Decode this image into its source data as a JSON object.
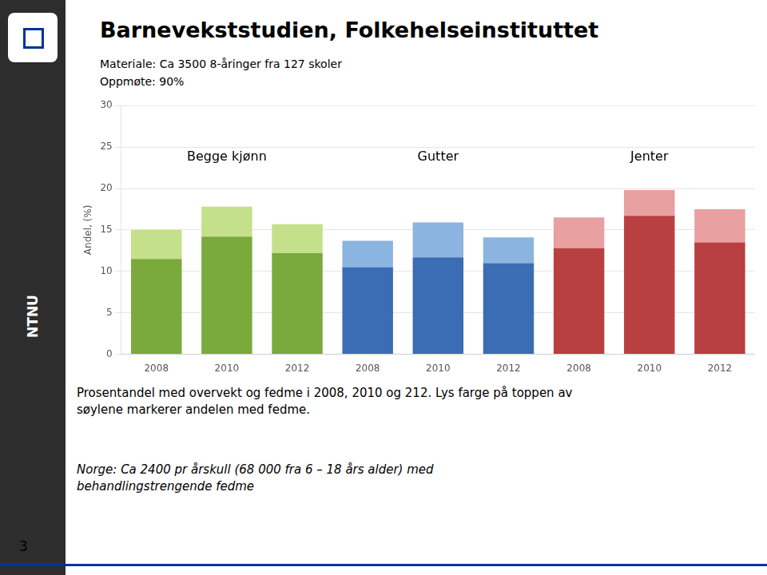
{
  "chart_data": {
    "type": "bar",
    "title": "Barnevekststudien, Folkehelseinstituttet",
    "subtitle": [
      "Materiale: Ca 3500 8-åringer fra 127 skoler",
      "Oppmøte: 90%"
    ],
    "ylabel": "Andel, (%)",
    "categories": [
      "2008",
      "2010",
      "2012",
      "2008",
      "2010",
      "2012",
      "2008",
      "2010",
      "2012"
    ],
    "series": [
      {
        "colors": [
          "#7aaa3c",
          "#7aaa3c",
          "#7aaa3c",
          "#3b6db5",
          "#3b6db5",
          "#3b6db5",
          "#b84040",
          "#b84040",
          "#b84040"
        ],
        "values": [
          11.5,
          14.2,
          12.2,
          10.5,
          11.7,
          11.0,
          12.8,
          16.7,
          13.5
        ]
      },
      {
        "colors": [
          "#c5e08a",
          "#c5e08a",
          "#c5e08a",
          "#8cb4e0",
          "#8cb4e0",
          "#8cb4e0",
          "#e8a0a0",
          "#e8a0a0",
          "#e8a0a0"
        ],
        "values": [
          3.5,
          3.6,
          3.5,
          3.2,
          4.2,
          3.1,
          3.7,
          3.1,
          4.0
        ]
      }
    ],
    "stacked": true,
    "ylim": [
      0,
      30
    ],
    "yticks": [
      0,
      5,
      10,
      15,
      20,
      25,
      30
    ],
    "grid": true,
    "annotations": [
      {
        "text": "Begge kjønn",
        "y": 23.0
      },
      {
        "text": "Gutter",
        "y": 23.0
      },
      {
        "text": "Jenter",
        "y": 23.0
      }
    ],
    "footer": "Prosentandel med overvekt og fedme i 2008, 2010 og 212. Lys farge på toppen av\nsøylene markerer andelen med fedme.",
    "footnote": "Norge: Ca 2400 pr årskull (68 000 fra 6 – 18 års alder) med\nbehandlingstrengende fedme",
    "sidebar_text": "NTNU",
    "page_number": "3"
  }
}
